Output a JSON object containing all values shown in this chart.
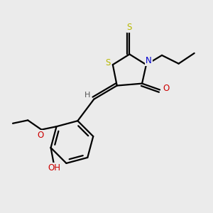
{
  "background_color": "#ebebeb",
  "atom_colors": {
    "S": "#b8b800",
    "N": "#0000cc",
    "O": "#cc0000",
    "C": "#000000",
    "H": "#000000"
  },
  "bond_color": "#000000",
  "bond_width": 1.6,
  "figsize": [
    3.0,
    3.0
  ],
  "dpi": 100
}
